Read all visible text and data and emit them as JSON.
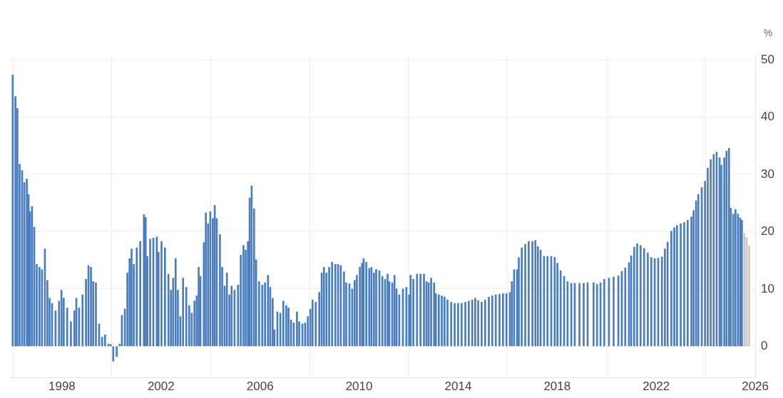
{
  "chart_data": {
    "type": "bar",
    "ylabel": "%",
    "xlim": [
      1995.9,
      2026.0
    ],
    "xticks": [
      1998,
      2002,
      2006,
      2010,
      2014,
      2018,
      2022,
      2026
    ],
    "ylim": [
      -5.5,
      51
    ],
    "yticks": [
      0,
      10,
      20,
      30,
      40,
      50
    ],
    "grid": true,
    "legend": false,
    "series": [
      {
        "color": "#4a7dc0",
        "x": [
          1996.01,
          1996.12,
          1996.2,
          1996.29,
          1996.39,
          1996.48,
          1996.58,
          1996.65,
          1996.71,
          1996.79,
          1996.88,
          1996.98,
          1997.09,
          1997.19,
          1997.31,
          1997.41,
          1997.5,
          1997.6,
          1997.74,
          1997.88,
          1997.98,
          1998.07,
          1998.21,
          1998.36,
          1998.5,
          1998.58,
          1998.69,
          1998.83,
          1998.97,
          1999.07,
          1999.17,
          1999.26,
          1999.37,
          1999.5,
          1999.62,
          1999.74,
          1999.88,
          1999.97,
          2000.07,
          2000.21,
          2000.33,
          2000.42,
          2000.54,
          2000.64,
          2000.73,
          2000.81,
          2000.9,
          2001.02,
          2001.16,
          2001.31,
          2001.38,
          2001.45,
          2001.56,
          2001.69,
          2001.83,
          2001.9,
          2002.02,
          2002.16,
          2002.3,
          2002.4,
          2002.49,
          2002.59,
          2002.68,
          2002.78,
          2002.89,
          2003.02,
          2003.14,
          2003.24,
          2003.35,
          2003.44,
          2003.52,
          2003.59,
          2003.73,
          2003.81,
          2003.9,
          2003.99,
          2004.09,
          2004.17,
          2004.25,
          2004.38,
          2004.47,
          2004.57,
          2004.66,
          2004.76,
          2004.85,
          2004.97,
          2005.11,
          2005.22,
          2005.33,
          2005.42,
          2005.51,
          2005.58,
          2005.66,
          2005.76,
          2005.84,
          2005.96,
          2006.09,
          2006.2,
          2006.32,
          2006.41,
          2006.51,
          2006.58,
          2006.7,
          2006.82,
          2006.94,
          2007.06,
          2007.15,
          2007.25,
          2007.36,
          2007.49,
          2007.58,
          2007.71,
          2007.82,
          2007.93,
          2008.03,
          2008.12,
          2008.25,
          2008.39,
          2008.49,
          2008.58,
          2008.68,
          2008.79,
          2008.91,
          2009.04,
          2009.15,
          2009.26,
          2009.39,
          2009.48,
          2009.61,
          2009.72,
          2009.82,
          2009.91,
          2010.03,
          2010.12,
          2010.18,
          2010.29,
          2010.41,
          2010.5,
          2010.6,
          2010.69,
          2010.82,
          2010.94,
          2011.05,
          2011.15,
          2011.22,
          2011.34,
          2011.43,
          2011.51,
          2011.62,
          2011.77,
          2011.91,
          2012.02,
          2012.08,
          2012.19,
          2012.34,
          2012.48,
          2012.62,
          2012.72,
          2012.81,
          2012.91,
          2013.03,
          2013.1,
          2013.22,
          2013.34,
          2013.45,
          2013.57,
          2013.72,
          2013.86,
          2014.0,
          2014.14,
          2014.29,
          2014.43,
          2014.57,
          2014.69,
          2014.81,
          2014.95,
          2015.09,
          2015.24,
          2015.38,
          2015.52,
          2015.67,
          2015.81,
          2015.95,
          2016.09,
          2016.17,
          2016.26,
          2016.38,
          2016.45,
          2016.57,
          2016.71,
          2016.85,
          2017.0,
          2017.12,
          2017.22,
          2017.33,
          2017.47,
          2017.61,
          2017.76,
          2017.9,
          2018.01,
          2018.14,
          2018.28,
          2018.42,
          2018.57,
          2018.71,
          2018.9,
          2019.07,
          2019.23,
          2019.47,
          2019.61,
          2019.75,
          2019.9,
          2020.09,
          2020.28,
          2020.47,
          2020.61,
          2020.75,
          2020.9,
          2020.99,
          2021.11,
          2021.23,
          2021.37,
          2021.51,
          2021.66,
          2021.8,
          2021.94,
          2022.08,
          2022.23,
          2022.35,
          2022.46,
          2022.61,
          2022.73,
          2022.84,
          2022.99,
          2023.13,
          2023.27,
          2023.42,
          2023.51,
          2023.61,
          2023.7,
          2023.84,
          2023.97,
          2024.08,
          2024.2,
          2024.32,
          2024.44,
          2024.56,
          2024.63,
          2024.75,
          2024.84,
          2024.94,
          2025.01,
          2025.11,
          2025.2,
          2025.3,
          2025.39,
          2025.46
        ],
        "values": [
          47.4,
          43.6,
          41.5,
          31.8,
          30.7,
          28.6,
          29.2,
          26.5,
          23.5,
          24.4,
          20.8,
          14.3,
          13.8,
          13.4,
          17.0,
          11.5,
          8.4,
          7.5,
          6.2,
          7.9,
          9.8,
          8.4,
          6.7,
          4.3,
          6.2,
          8.4,
          6.7,
          9.0,
          11.7,
          14.1,
          13.8,
          11.3,
          11.1,
          3.9,
          1.6,
          2.0,
          0.4,
          0.3,
          -2.6,
          -1.8,
          0.4,
          5.4,
          6.5,
          12.8,
          15.3,
          17.0,
          14.3,
          17.2,
          18.3,
          23.0,
          22.5,
          15.7,
          18.7,
          18.9,
          19.1,
          16.4,
          18.3,
          17.2,
          12.6,
          9.8,
          11.9,
          15.3,
          9.8,
          5.2,
          11.9,
          10.3,
          7.1,
          5.8,
          7.9,
          8.8,
          13.8,
          12.2,
          18.1,
          23.3,
          21.4,
          23.5,
          22.3,
          24.6,
          22.3,
          19.5,
          13.8,
          10.5,
          12.8,
          9.0,
          10.5,
          9.8,
          10.7,
          15.9,
          17.6,
          16.8,
          18.3,
          25.9,
          28.0,
          24.0,
          15.1,
          11.3,
          10.7,
          11.1,
          12.4,
          10.3,
          8.4,
          2.9,
          6.0,
          5.8,
          7.9,
          7.1,
          6.7,
          4.6,
          4.1,
          6.0,
          4.3,
          3.9,
          4.1,
          5.2,
          6.5,
          8.1,
          7.7,
          9.4,
          12.8,
          13.8,
          12.8,
          13.8,
          14.7,
          14.3,
          14.3,
          14.1,
          13.0,
          11.1,
          10.9,
          10.0,
          11.5,
          12.4,
          13.8,
          14.5,
          15.3,
          14.7,
          13.6,
          13.8,
          12.8,
          13.4,
          13.2,
          12.2,
          11.7,
          12.6,
          11.3,
          11.1,
          12.4,
          10.0,
          9.0,
          10.0,
          10.3,
          9.0,
          12.4,
          11.7,
          12.6,
          12.6,
          12.6,
          11.3,
          11.1,
          11.9,
          11.1,
          9.2,
          9.0,
          8.8,
          8.6,
          8.1,
          7.7,
          7.5,
          7.5,
          7.5,
          7.7,
          7.9,
          8.1,
          8.4,
          8.0,
          7.7,
          8.1,
          8.6,
          8.8,
          9.0,
          9.1,
          9.2,
          9.2,
          9.4,
          11.3,
          13.4,
          13.4,
          15.5,
          17.2,
          17.8,
          18.3,
          18.3,
          18.5,
          17.4,
          16.8,
          15.7,
          15.7,
          15.7,
          15.5,
          14.5,
          13.2,
          12.2,
          11.3,
          11.0,
          11.0,
          11.0,
          11.0,
          11.1,
          11.1,
          10.8,
          11.1,
          11.7,
          11.9,
          12.1,
          12.3,
          13.1,
          13.7,
          14.6,
          15.8,
          17.3,
          17.9,
          17.6,
          17.1,
          16.3,
          15.5,
          15.3,
          15.4,
          15.6,
          17.0,
          18.2,
          20.1,
          20.7,
          21.1,
          21.4,
          21.6,
          22.0,
          22.6,
          23.7,
          25.4,
          26.5,
          27.7,
          28.8,
          31.1,
          32.6,
          33.5,
          33.9,
          32.9,
          31.6,
          32.9,
          34.1,
          34.6,
          24.1,
          23.1,
          23.9,
          23.1,
          22.4,
          22.0
        ]
      },
      {
        "color": "#c8c8c8",
        "x": [
          2025.56,
          2025.65,
          2025.75
        ],
        "values": [
          19.7,
          19.0,
          17.5
        ]
      }
    ]
  }
}
